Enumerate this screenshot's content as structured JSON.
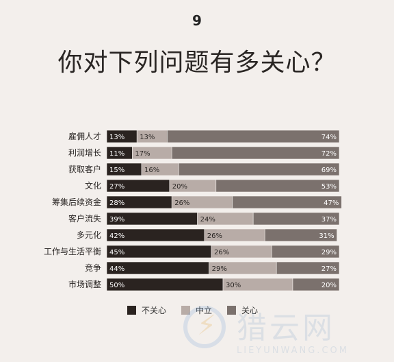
{
  "page_number": "9",
  "title": "你对下列问题有多关心？",
  "colors": {
    "series": [
      "#2a2320",
      "#b8aca7",
      "#7b716d"
    ],
    "background": "#f3efec"
  },
  "chart_data": {
    "type": "bar",
    "stacked": true,
    "orientation": "horizontal",
    "categories": [
      "雇佣人才",
      "利润增长",
      "获取客户",
      "文化",
      "筹集后续资金",
      "客户流失",
      "多元化",
      "工作与生活平衡",
      "竞争",
      "市场调整"
    ],
    "series": [
      {
        "name": "不关心",
        "values": [
          13,
          11,
          15,
          27,
          28,
          39,
          42,
          45,
          44,
          50
        ]
      },
      {
        "name": "中立",
        "values": [
          13,
          17,
          16,
          20,
          26,
          24,
          26,
          26,
          29,
          30
        ]
      },
      {
        "name": "关心",
        "values": [
          74,
          72,
          69,
          53,
          47,
          37,
          31,
          29,
          27,
          20
        ]
      }
    ],
    "value_suffix": "%",
    "legend_position": "bottom"
  },
  "watermark": {
    "text": "猎云网",
    "subtext": "LIEYUNWANG.COM"
  }
}
